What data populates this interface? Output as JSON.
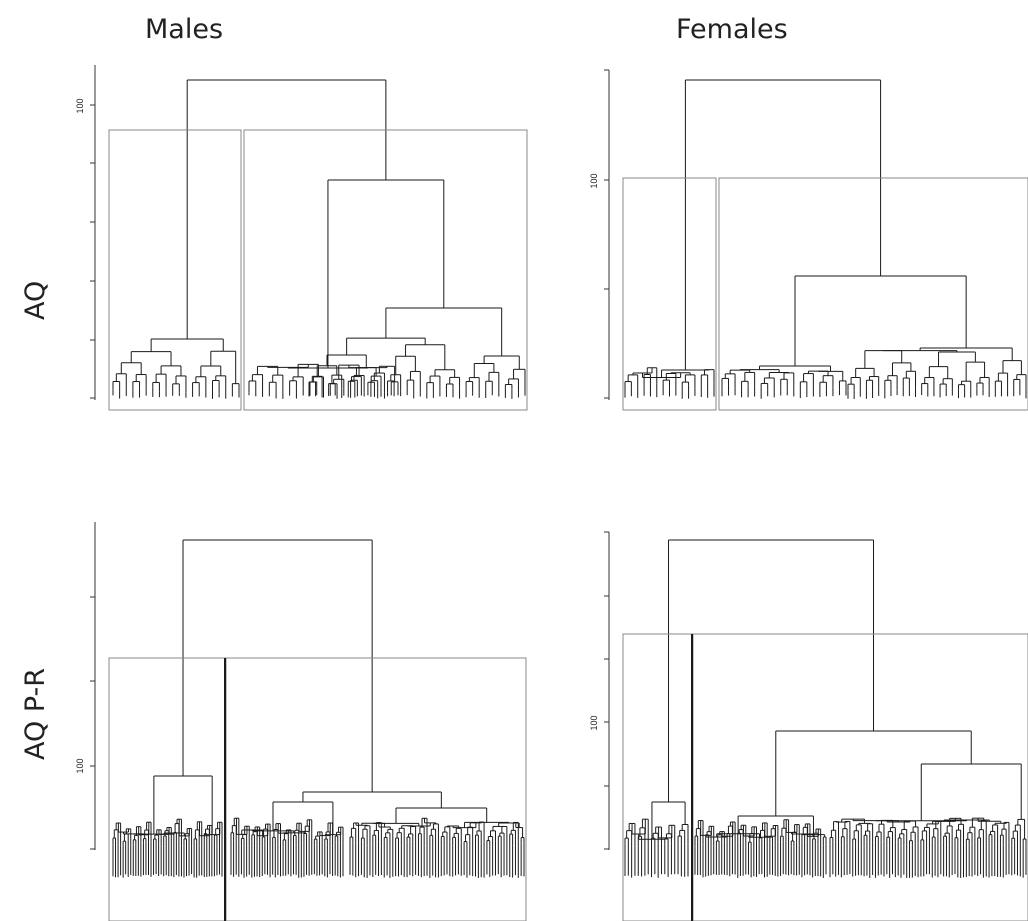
{
  "columns": [
    "Males",
    "Females"
  ],
  "rows": [
    "AQ",
    "AQ P-R"
  ],
  "colors": {
    "tree": "#1a1a1a",
    "cluster_box": "#888888",
    "axis": "#333333"
  },
  "chart_data": [
    {
      "type": "dendrogram",
      "group": "Males",
      "measure": "AQ",
      "y_tick_label": "100",
      "n_clusters_highlighted": 2,
      "merge_heights": {
        "top": 105,
        "right_cluster": 82,
        "right_sub": 39,
        "left_cluster": 21
      }
    },
    {
      "type": "dendrogram",
      "group": "Females",
      "measure": "AQ",
      "y_tick_label": "100",
      "n_clusters_highlighted": 2,
      "merge_heights": {
        "top": 138,
        "right_cluster": 70,
        "right_sub": 35,
        "left_cluster": 15
      }
    },
    {
      "type": "dendrogram",
      "group": "Males",
      "measure": "AQ P-R",
      "y_tick_label": "100",
      "n_clusters_highlighted": 2,
      "merge_heights": {
        "top": 302,
        "right_cluster": 69,
        "left_cluster": 108
      }
    },
    {
      "type": "dendrogram",
      "group": "Females",
      "measure": "AQ P-R",
      "y_tick_label": "100",
      "n_clusters_highlighted": 2,
      "merge_heights": {
        "top": 199,
        "right_cluster": 93,
        "right_sub": 65,
        "left_cluster": 35
      }
    }
  ]
}
